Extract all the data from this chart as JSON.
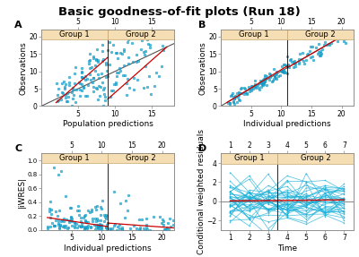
{
  "title": "Basic goodness-of-fit plots (Run 18)",
  "title_fontsize": 9.5,
  "scatter_color": "#1ab0d8",
  "scatter_alpha": 0.75,
  "scatter_size": 4,
  "scatter_edgecolor": "#0080b0",
  "scatter_linewidth": 0.3,
  "line_identity_color": "#555555",
  "line_smooth_color": "#cc0000",
  "panel_bg": "#ffffff",
  "axis_label_fontsize": 6.5,
  "tick_fontsize": 5.5,
  "group_label_fontsize": 6,
  "panel_label_fontsize": 8,
  "group_label_bg": "#f5deb3",
  "group_label_border": "#c8a870",
  "panelA": {
    "xlabel": "Population predictions",
    "ylabel": "Observations",
    "xlim": [
      0,
      18
    ],
    "ylim": [
      0,
      22
    ],
    "xticks_bottom": [
      5,
      10,
      15
    ],
    "xticks_top": [
      5,
      10,
      15
    ],
    "yticks": [
      0,
      5,
      10,
      15,
      20
    ],
    "split_x": 9,
    "group1_label": "Group 1",
    "group2_label": "Group 2"
  },
  "panelB": {
    "xlabel": "Individual predictions",
    "ylabel": "Observations",
    "xlim": [
      0,
      22
    ],
    "ylim": [
      0,
      22
    ],
    "xticks_bottom": [
      5,
      10,
      15,
      20
    ],
    "xticks_top": [
      5,
      10,
      15,
      20
    ],
    "yticks": [
      0,
      5,
      10,
      15,
      20
    ],
    "split_x": 11,
    "group1_label": "Group 1",
    "group2_label": "Group 2"
  },
  "panelC": {
    "xlabel": "Individual predictions",
    "ylabel": "|iWRES|",
    "xlim": [
      0,
      22
    ],
    "ylim": [
      0,
      1.1
    ],
    "xticks_bottom": [
      5,
      10,
      15,
      20
    ],
    "xticks_top": [
      5,
      10,
      15,
      20
    ],
    "yticks": [
      0.0,
      0.2,
      0.4,
      0.6,
      0.8,
      1.0
    ],
    "split_x": 11,
    "group1_label": "Group 1",
    "group2_label": "Group 2"
  },
  "panelD": {
    "xlabel": "Time",
    "ylabel": "Conditional weighted residuals",
    "xlim": [
      0.5,
      7.5
    ],
    "ylim": [
      -3,
      5
    ],
    "xticks_bottom": [
      1,
      2,
      3,
      4,
      5,
      6,
      7
    ],
    "xticks_top": [
      1,
      2,
      3,
      4,
      5,
      6,
      7
    ],
    "yticks": [
      -2,
      0,
      2,
      4
    ],
    "split_x": 3.5,
    "group1_label": "Group 1",
    "group2_label": "Group 2"
  }
}
